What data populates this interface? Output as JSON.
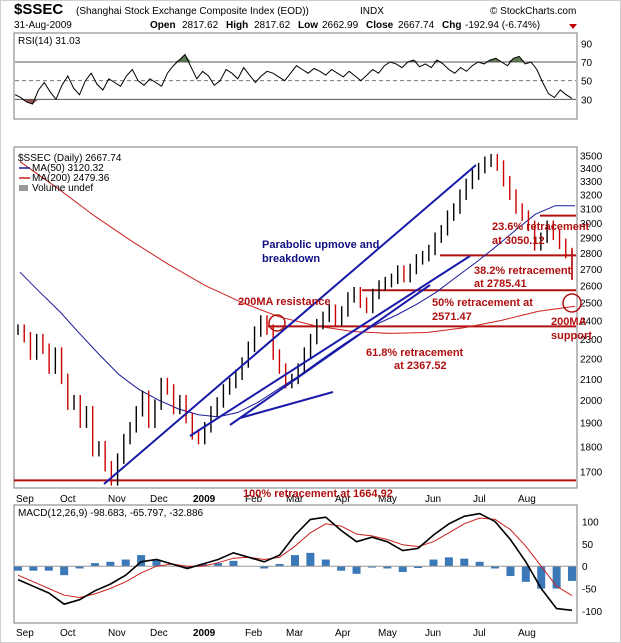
{
  "header": {
    "symbol": "$SSEC",
    "name": "(Shanghai Stock Exchange Composite Index (EOD))",
    "exchange": "INDX",
    "date": "31-Aug-2009",
    "brand": "© StockCharts.com",
    "ohlc": {
      "open_label": "Open",
      "open": "2817.62",
      "high_label": "High",
      "high": "2817.62",
      "low_label": "Low",
      "low": "2662.99",
      "close_label": "Close",
      "close": "2667.74",
      "chg_label": "Chg",
      "chg": "-192.94 (-6.74%)"
    }
  },
  "colors": {
    "price_up": "#000000",
    "price_down": "#cc0000",
    "ma50": "#1a1a9a",
    "ma200": "#cc2020",
    "trendline": "#1a1aaa",
    "fib_line": "#b01010",
    "rsi_fill": "#5a7a50",
    "macd_hist": "#3a78b8"
  },
  "chart_data": [
    {
      "type": "line",
      "panel": "rsi",
      "legend": "RSI(14) 31.03",
      "y_ticks": [
        "90",
        "70",
        "50",
        "30"
      ],
      "ylim": [
        10,
        100
      ],
      "reference_lines": [
        70,
        30
      ],
      "dashed_line": 50,
      "values": [
        35,
        32,
        27,
        25,
        40,
        48,
        38,
        30,
        45,
        55,
        42,
        35,
        50,
        58,
        46,
        40,
        52,
        48,
        44,
        55,
        62,
        50,
        45,
        52,
        48,
        44,
        58,
        66,
        72,
        78,
        65,
        52,
        60,
        55,
        45,
        50,
        62,
        58,
        52,
        64,
        56,
        48,
        55,
        60,
        58,
        54,
        50,
        58,
        66,
        62,
        58,
        63,
        60,
        56,
        62,
        58,
        54,
        60,
        55,
        50,
        56,
        62,
        58,
        66,
        70,
        68,
        64,
        70,
        72,
        65,
        68,
        64,
        72,
        68,
        62,
        58,
        64,
        60,
        66,
        70,
        68,
        72,
        74,
        70,
        66,
        74,
        76,
        68,
        70,
        62,
        48,
        36,
        32,
        40,
        35,
        31.03
      ]
    },
    {
      "type": "line",
      "panel": "price",
      "legend": [
        "$SSEC (Daily) 2667.74",
        "MA(50) 3120.32",
        "MA(200) 2479.36",
        "Volume undef"
      ],
      "x_ticks": [
        "Sep",
        "Oct",
        "Nov",
        "Dec",
        "2009",
        "Feb",
        "Mar",
        "Apr",
        "May",
        "Jun",
        "Jul",
        "Aug"
      ],
      "y_ticks": [
        "3500",
        "3400",
        "3300",
        "3200",
        "3100",
        "3000",
        "2900",
        "2800",
        "2700",
        "2600",
        "2500",
        "2400",
        "2300",
        "2200",
        "2100",
        "2000",
        "1900",
        "1800",
        "1700"
      ],
      "ylim": [
        1640,
        3560
      ],
      "log_scale": true,
      "series": [
        {
          "name": "$SSEC (Daily) 2667.74",
          "values": [
            2350,
            2310,
            2220,
            2300,
            2250,
            2150,
            2230,
            2100,
            1980,
            2000,
            1900,
            1950,
            1780,
            1800,
            1720,
            1664.92,
            1750,
            1830,
            1880,
            1950,
            2020,
            1900,
            1980,
            2080,
            2050,
            1960,
            2000,
            1920,
            1850,
            1830,
            1880,
            1950,
            1990,
            2050,
            2080,
            2120,
            2180,
            2260,
            2340,
            2400,
            2350,
            2220,
            2150,
            2080,
            2100,
            2150,
            2230,
            2300,
            2380,
            2420,
            2460,
            2400,
            2450,
            2530,
            2560,
            2500,
            2470,
            2550,
            2600,
            2620,
            2640,
            2690,
            2650,
            2700,
            2760,
            2780,
            2820,
            2900,
            2950,
            3050,
            3100,
            3200,
            3280,
            3350,
            3400,
            3450,
            3470,
            3420,
            3300,
            3200,
            3100,
            3050,
            2980,
            2850,
            2900,
            2980,
            2920,
            2860,
            2800,
            2667.74
          ]
        },
        {
          "name": "MA(50) 3120.32",
          "values": [
            2680,
            2560,
            2450,
            2330,
            2220,
            2120,
            2050,
            2000,
            1960,
            1935,
            1925,
            1945,
            1990,
            2050,
            2110,
            2180,
            2250,
            2320,
            2380,
            2430,
            2490,
            2560,
            2650,
            2740,
            2840,
            2950,
            3060,
            3120,
            3120.32
          ]
        },
        {
          "name": "MA(200) 2479.36",
          "values": [
            3450,
            3250,
            3050,
            2880,
            2730,
            2600,
            2500,
            2420,
            2370,
            2340,
            2330,
            2335,
            2360,
            2400,
            2450,
            2479.36
          ]
        }
      ]
    },
    {
      "type": "line",
      "panel": "macd",
      "legend": "MACD(12,26,9) -98.683, -65.797, -32.886",
      "y_ticks": [
        "100",
        "50",
        "0",
        "-50",
        "-100"
      ],
      "ylim": [
        -125,
        135
      ],
      "series": [
        {
          "name": "MACD",
          "values": [
            -30,
            -45,
            -60,
            -85,
            -75,
            -55,
            -40,
            -20,
            10,
            15,
            5,
            -5,
            5,
            15,
            30,
            20,
            10,
            25,
            70,
            105,
            110,
            80,
            55,
            65,
            55,
            35,
            40,
            70,
            95,
            112,
            118,
            100,
            60,
            10,
            -50,
            -95,
            -98.683
          ]
        },
        {
          "name": "Signal",
          "values": [
            -20,
            -35,
            -50,
            -65,
            -70,
            -62,
            -50,
            -35,
            -15,
            0,
            5,
            0,
            0,
            8,
            18,
            20,
            15,
            20,
            45,
            75,
            95,
            90,
            72,
            68,
            60,
            48,
            44,
            55,
            75,
            95,
            108,
            105,
            82,
            45,
            0,
            -45,
            -65.797
          ]
        },
        {
          "name": "Histogram",
          "values": [
            -10,
            -10,
            -10,
            -20,
            -5,
            7,
            10,
            15,
            25,
            15,
            0,
            -5,
            5,
            7,
            12,
            0,
            -5,
            5,
            25,
            30,
            15,
            -10,
            -17,
            -3,
            -5,
            -13,
            -4,
            15,
            20,
            17,
            10,
            -5,
            -22,
            -35,
            -50,
            -50,
            -32.886
          ]
        }
      ]
    }
  ],
  "annotations": {
    "parabolic": [
      "Parabolic upmove and",
      "breakdown"
    ],
    "ma200_resistance": "200MA resistance",
    "fib_236": [
      "23.6% retracement",
      "at 3050.12"
    ],
    "fib_382": [
      "38.2% retracement",
      "at 2785.41"
    ],
    "fib_50": [
      "50% retracement at",
      "2571.47"
    ],
    "fib_618": [
      "61.8% retracement",
      "at 2367.52"
    ],
    "ma200_support": [
      "200MA",
      "support"
    ],
    "fib_100": "100% retracement at 1664.92"
  },
  "fib_levels": [
    3050.12,
    2785.41,
    2571.47,
    2367.52,
    1664.92
  ]
}
